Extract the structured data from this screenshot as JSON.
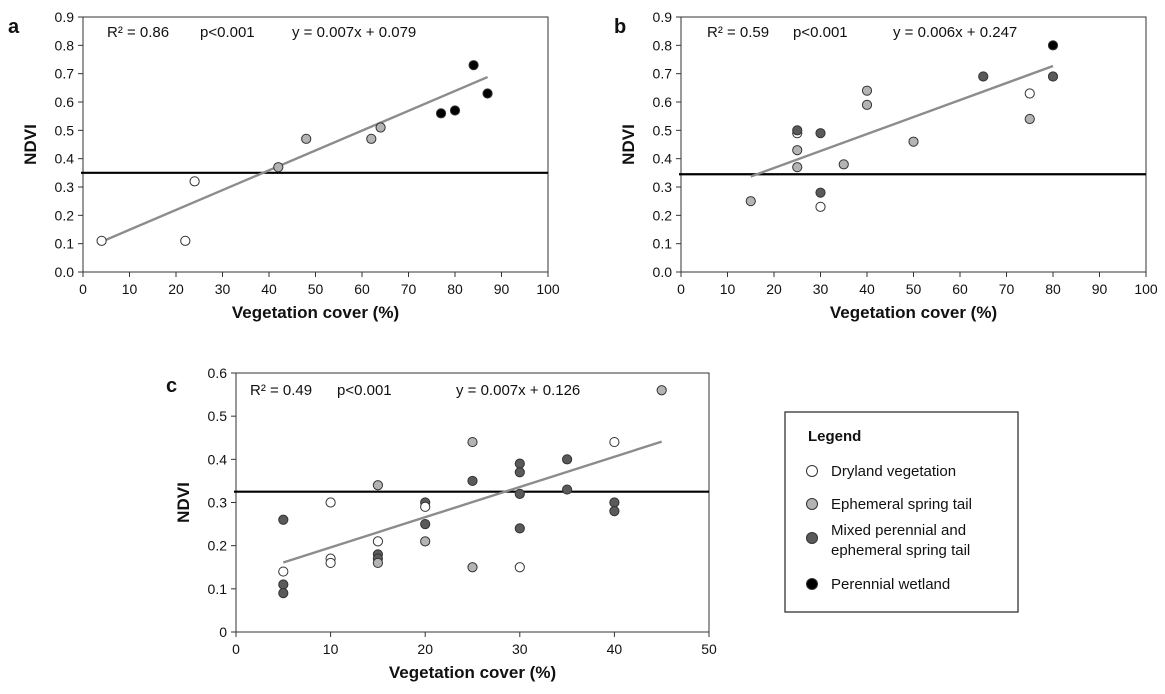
{
  "categories": {
    "dryland": {
      "label": "Dryland vegetation",
      "color": "#ffffff"
    },
    "ephemeral": {
      "label": "Ephemeral spring tail",
      "color": "#b4b4b4"
    },
    "mixed": {
      "label": "Mixed perennial and ephemeral spring tail",
      "label_lines": [
        "Mixed perennial and",
        "ephemeral spring tail"
      ],
      "color": "#5a5a5a"
    },
    "perennial": {
      "label": "Perennial wetland",
      "color": "#000000"
    }
  },
  "legend": {
    "title": "Legend"
  },
  "chart_data": [
    {
      "panel": "a",
      "type": "scatter",
      "xlabel": "Vegetation cover (%)",
      "ylabel": "NDVI",
      "xlim": [
        0,
        100
      ],
      "ylim": [
        0,
        0.9
      ],
      "xticks": [
        "0",
        "10",
        "20",
        "30",
        "40",
        "50",
        "60",
        "70",
        "80",
        "90",
        "100"
      ],
      "yticks": [
        "0.0",
        "0.1",
        "0.2",
        "0.3",
        "0.4",
        "0.5",
        "0.6",
        "0.7",
        "0.8",
        "0.9"
      ],
      "stats": {
        "r2": "R² = 0.86",
        "p": "p<0.001",
        "equation": "y = 0.007x + 0.079"
      },
      "threshold": 0.35,
      "trendline": {
        "slope": 0.007,
        "intercept": 0.079,
        "x_range": [
          4,
          87
        ]
      },
      "points": [
        {
          "x": 4,
          "y": 0.11,
          "category": "dryland"
        },
        {
          "x": 22,
          "y": 0.11,
          "category": "dryland"
        },
        {
          "x": 24,
          "y": 0.32,
          "category": "dryland"
        },
        {
          "x": 42,
          "y": 0.37,
          "category": "ephemeral"
        },
        {
          "x": 48,
          "y": 0.47,
          "category": "ephemeral"
        },
        {
          "x": 62,
          "y": 0.47,
          "category": "ephemeral"
        },
        {
          "x": 64,
          "y": 0.51,
          "category": "ephemeral"
        },
        {
          "x": 77,
          "y": 0.56,
          "category": "perennial"
        },
        {
          "x": 80,
          "y": 0.57,
          "category": "perennial"
        },
        {
          "x": 84,
          "y": 0.73,
          "category": "perennial"
        },
        {
          "x": 87,
          "y": 0.63,
          "category": "perennial"
        }
      ]
    },
    {
      "panel": "b",
      "type": "scatter",
      "xlabel": "Vegetation cover (%)",
      "ylabel": "NDVI",
      "xlim": [
        0,
        100
      ],
      "ylim": [
        0,
        0.9
      ],
      "xticks": [
        "0",
        "10",
        "20",
        "30",
        "40",
        "50",
        "60",
        "70",
        "80",
        "90",
        "100"
      ],
      "yticks": [
        "0.0",
        "0.1",
        "0.2",
        "0.3",
        "0.4",
        "0.5",
        "0.6",
        "0.7",
        "0.8",
        "0.9"
      ],
      "stats": {
        "r2": "R² = 0.59",
        "p": "p<0.001",
        "equation": "y = 0.006x + 0.247"
      },
      "threshold": 0.345,
      "trendline": {
        "slope": 0.006,
        "intercept": 0.247,
        "x_range": [
          15,
          80
        ]
      },
      "points": [
        {
          "x": 15,
          "y": 0.25,
          "category": "ephemeral"
        },
        {
          "x": 25,
          "y": 0.37,
          "category": "ephemeral"
        },
        {
          "x": 25,
          "y": 0.43,
          "category": "ephemeral"
        },
        {
          "x": 25,
          "y": 0.49,
          "category": "dryland"
        },
        {
          "x": 25,
          "y": 0.5,
          "category": "mixed"
        },
        {
          "x": 30,
          "y": 0.23,
          "category": "dryland"
        },
        {
          "x": 30,
          "y": 0.28,
          "category": "mixed"
        },
        {
          "x": 30,
          "y": 0.49,
          "category": "mixed"
        },
        {
          "x": 35,
          "y": 0.38,
          "category": "ephemeral"
        },
        {
          "x": 40,
          "y": 0.59,
          "category": "ephemeral"
        },
        {
          "x": 40,
          "y": 0.64,
          "category": "ephemeral"
        },
        {
          "x": 50,
          "y": 0.46,
          "category": "ephemeral"
        },
        {
          "x": 65,
          "y": 0.69,
          "category": "mixed"
        },
        {
          "x": 75,
          "y": 0.54,
          "category": "ephemeral"
        },
        {
          "x": 75,
          "y": 0.63,
          "category": "dryland"
        },
        {
          "x": 80,
          "y": 0.69,
          "category": "mixed"
        },
        {
          "x": 80,
          "y": 0.8,
          "category": "perennial"
        }
      ]
    },
    {
      "panel": "c",
      "type": "scatter",
      "xlabel": "Vegetation cover (%)",
      "ylabel": "NDVI",
      "xlim": [
        0,
        50
      ],
      "ylim": [
        0,
        0.6
      ],
      "xticks": [
        "0",
        "10",
        "20",
        "30",
        "40",
        "50"
      ],
      "yticks": [
        "0",
        "0.1",
        "0.2",
        "0.3",
        "0.4",
        "0.5",
        "0.6"
      ],
      "stats": {
        "r2": "R² = 0.49",
        "p": "p<0.001",
        "equation": "y = 0.007x + 0.126"
      },
      "threshold": 0.325,
      "trendline": {
        "slope": 0.007,
        "intercept": 0.126,
        "x_range": [
          5,
          45
        ]
      },
      "points": [
        {
          "x": 5,
          "y": 0.14,
          "category": "dryland"
        },
        {
          "x": 5,
          "y": 0.26,
          "category": "mixed"
        },
        {
          "x": 5,
          "y": 0.11,
          "category": "mixed"
        },
        {
          "x": 5,
          "y": 0.09,
          "category": "mixed"
        },
        {
          "x": 10,
          "y": 0.3,
          "category": "dryland"
        },
        {
          "x": 10,
          "y": 0.17,
          "category": "dryland"
        },
        {
          "x": 10,
          "y": 0.16,
          "category": "dryland"
        },
        {
          "x": 15,
          "y": 0.34,
          "category": "ephemeral"
        },
        {
          "x": 15,
          "y": 0.21,
          "category": "dryland"
        },
        {
          "x": 15,
          "y": 0.18,
          "category": "mixed"
        },
        {
          "x": 15,
          "y": 0.17,
          "category": "mixed"
        },
        {
          "x": 15,
          "y": 0.16,
          "category": "ephemeral"
        },
        {
          "x": 20,
          "y": 0.3,
          "category": "mixed"
        },
        {
          "x": 20,
          "y": 0.29,
          "category": "dryland"
        },
        {
          "x": 20,
          "y": 0.25,
          "category": "mixed"
        },
        {
          "x": 20,
          "y": 0.21,
          "category": "ephemeral"
        },
        {
          "x": 25,
          "y": 0.44,
          "category": "ephemeral"
        },
        {
          "x": 25,
          "y": 0.35,
          "category": "mixed"
        },
        {
          "x": 25,
          "y": 0.15,
          "category": "ephemeral"
        },
        {
          "x": 30,
          "y": 0.39,
          "category": "mixed"
        },
        {
          "x": 30,
          "y": 0.37,
          "category": "mixed"
        },
        {
          "x": 30,
          "y": 0.32,
          "category": "mixed"
        },
        {
          "x": 30,
          "y": 0.24,
          "category": "mixed"
        },
        {
          "x": 30,
          "y": 0.15,
          "category": "dryland"
        },
        {
          "x": 35,
          "y": 0.4,
          "category": "mixed"
        },
        {
          "x": 35,
          "y": 0.33,
          "category": "mixed"
        },
        {
          "x": 40,
          "y": 0.44,
          "category": "dryland"
        },
        {
          "x": 40,
          "y": 0.3,
          "category": "mixed"
        },
        {
          "x": 40,
          "y": 0.28,
          "category": "mixed"
        },
        {
          "x": 45,
          "y": 0.56,
          "category": "ephemeral"
        }
      ]
    }
  ]
}
